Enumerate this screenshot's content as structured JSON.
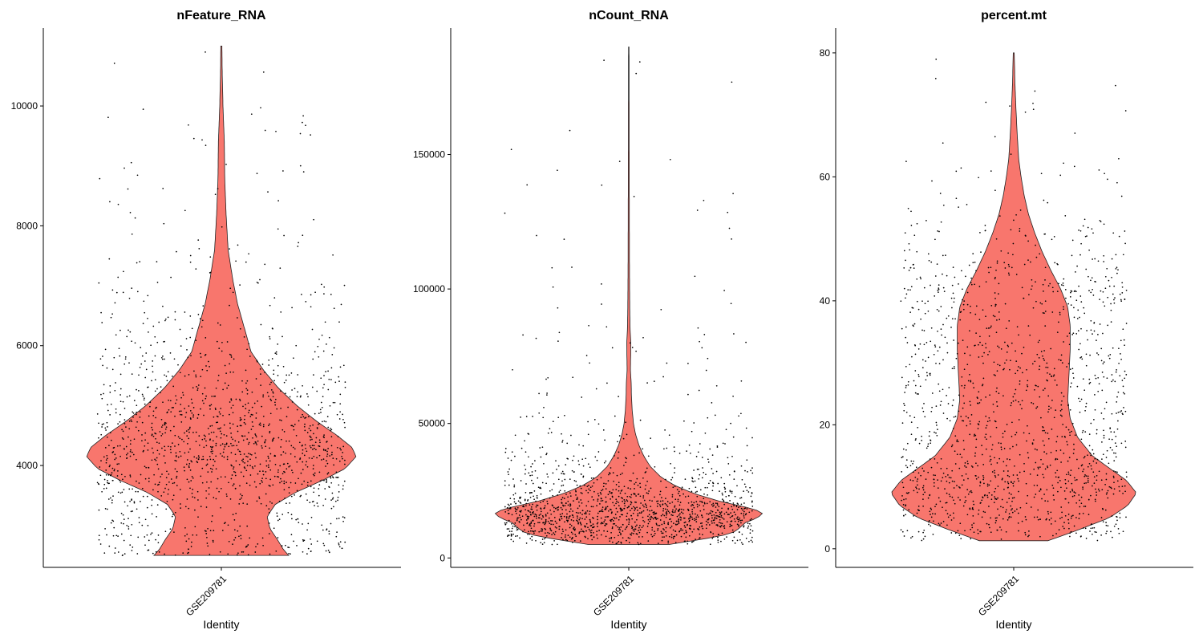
{
  "chart_data": [
    {
      "type": "violin",
      "title": "nFeature_RNA",
      "xlabel": "Identity",
      "ylabel": "",
      "categories": [
        "GSE209781"
      ],
      "ylim": [
        2300,
        11300
      ],
      "yticks": [
        4000,
        6000,
        8000,
        10000
      ],
      "yticklabels": [
        "4000",
        "6000",
        "8000",
        "10000"
      ],
      "data_min": 2500,
      "data_max": 11000,
      "violin_color": "#F8766D",
      "point_count": 1500,
      "point_seed": 11,
      "density_profile": [
        [
          2500,
          0.5
        ],
        [
          2600,
          0.46
        ],
        [
          2750,
          0.42
        ],
        [
          2950,
          0.36
        ],
        [
          3150,
          0.34
        ],
        [
          3350,
          0.4
        ],
        [
          3550,
          0.55
        ],
        [
          3750,
          0.75
        ],
        [
          3950,
          0.92
        ],
        [
          4150,
          1.0
        ],
        [
          4300,
          0.97
        ],
        [
          4500,
          0.86
        ],
        [
          4750,
          0.7
        ],
        [
          5000,
          0.56
        ],
        [
          5300,
          0.42
        ],
        [
          5600,
          0.31
        ],
        [
          5900,
          0.22
        ],
        [
          6300,
          0.17
        ],
        [
          6700,
          0.12
        ],
        [
          7100,
          0.085
        ],
        [
          7600,
          0.05
        ],
        [
          8200,
          0.035
        ],
        [
          8800,
          0.025
        ],
        [
          9400,
          0.022
        ],
        [
          10000,
          0.012
        ],
        [
          10600,
          0.006
        ],
        [
          11000,
          0.004
        ]
      ]
    },
    {
      "type": "violin",
      "title": "nCount_RNA",
      "xlabel": "Identity",
      "ylabel": "",
      "categories": [
        "GSE209781"
      ],
      "ylim": [
        -3500,
        197000
      ],
      "yticks": [
        0,
        50000,
        100000,
        150000
      ],
      "yticklabels": [
        "0",
        "50000",
        "100000",
        "150000"
      ],
      "data_min": 5000,
      "data_max": 190000,
      "violin_color": "#F8766D",
      "point_count": 1500,
      "point_seed": 23,
      "density_profile": [
        [
          5000,
          0.3
        ],
        [
          7000,
          0.55
        ],
        [
          9000,
          0.76
        ],
        [
          11000,
          0.82
        ],
        [
          13000,
          0.86
        ],
        [
          15000,
          0.96
        ],
        [
          17000,
          1.0
        ],
        [
          19000,
          0.86
        ],
        [
          21000,
          0.68
        ],
        [
          24000,
          0.48
        ],
        [
          27000,
          0.34
        ],
        [
          30000,
          0.24
        ],
        [
          34000,
          0.16
        ],
        [
          38000,
          0.11
        ],
        [
          42000,
          0.075
        ],
        [
          46000,
          0.05
        ],
        [
          50000,
          0.035
        ],
        [
          55000,
          0.025
        ],
        [
          60000,
          0.02
        ],
        [
          65000,
          0.018
        ],
        [
          70000,
          0.012
        ],
        [
          75000,
          0.014
        ],
        [
          80000,
          0.015
        ],
        [
          85000,
          0.01
        ],
        [
          90000,
          0.008
        ],
        [
          100000,
          0.006
        ],
        [
          110000,
          0.005
        ],
        [
          130000,
          0.004
        ],
        [
          160000,
          0.003
        ],
        [
          190000,
          0.002
        ]
      ]
    },
    {
      "type": "violin",
      "title": "percent.mt",
      "xlabel": "Identity",
      "ylabel": "",
      "categories": [
        "GSE209781"
      ],
      "ylim": [
        -3,
        84
      ],
      "yticks": [
        0,
        20,
        40,
        60,
        80
      ],
      "yticklabels": [
        "0",
        "20",
        "40",
        "60",
        "80"
      ],
      "data_min": 1.3,
      "data_max": 80,
      "violin_color": "#F8766D",
      "point_count": 1500,
      "point_seed": 37,
      "density_profile": [
        [
          1.3,
          0.28
        ],
        [
          3,
          0.52
        ],
        [
          5,
          0.78
        ],
        [
          7,
          0.93
        ],
        [
          9,
          1.0
        ],
        [
          11,
          0.92
        ],
        [
          13,
          0.78
        ],
        [
          15,
          0.64
        ],
        [
          18,
          0.52
        ],
        [
          21,
          0.46
        ],
        [
          24,
          0.44
        ],
        [
          28,
          0.45
        ],
        [
          32,
          0.46
        ],
        [
          36,
          0.46
        ],
        [
          39,
          0.44
        ],
        [
          42,
          0.38
        ],
        [
          45,
          0.3
        ],
        [
          48,
          0.23
        ],
        [
          51,
          0.17
        ],
        [
          54,
          0.12
        ],
        [
          57,
          0.085
        ],
        [
          60,
          0.06
        ],
        [
          63,
          0.04
        ],
        [
          67,
          0.028
        ],
        [
          71,
          0.018
        ],
        [
          75,
          0.01
        ],
        [
          80,
          0.004
        ]
      ]
    }
  ]
}
